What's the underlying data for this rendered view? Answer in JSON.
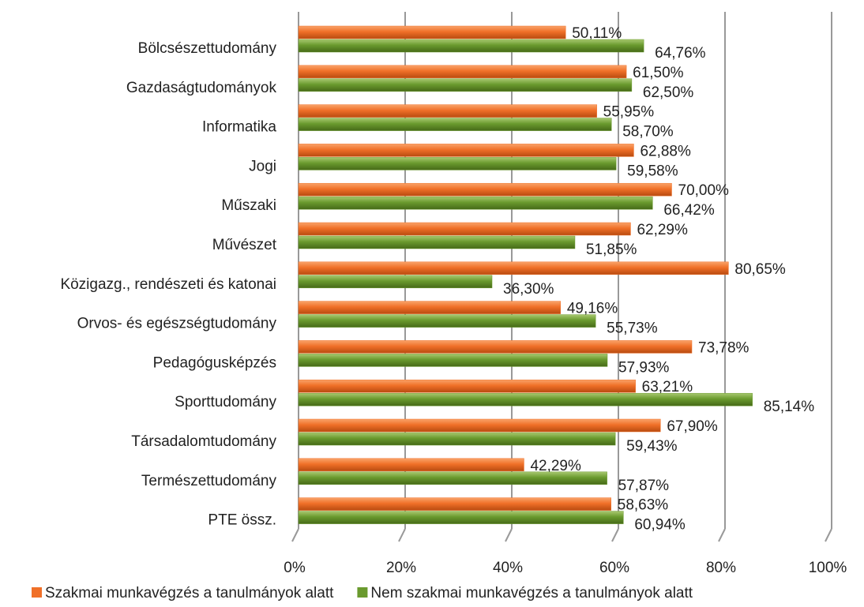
{
  "chart_data": {
    "type": "bar",
    "orientation": "horizontal",
    "categories": [
      "Bölcsészettudomány",
      "Gazdaságtudományok",
      "Informatika",
      "Jogi",
      "Műszaki",
      "Művészet",
      "Közigazg., rendészeti és katonai",
      "Orvos- és egészségtudomány",
      "Pedagógusképzés",
      "Sporttudomány",
      "Társadalomtudomány",
      "Természettudomány",
      "PTE össz."
    ],
    "series": [
      {
        "name": "Szakmai munkavégzés a tanulmányok alatt",
        "color": "#f07028",
        "values": [
          50.11,
          61.5,
          55.95,
          62.88,
          70.0,
          62.29,
          80.65,
          49.16,
          73.78,
          63.21,
          67.9,
          42.29,
          58.63
        ],
        "value_labels": [
          "50,11%",
          "61,50%",
          "55,95%",
          "62,88%",
          "70,00%",
          "62,29%",
          "80,65%",
          "49,16%",
          "73,78%",
          "63,21%",
          "67,90%",
          "42,29%",
          "58,63%"
        ]
      },
      {
        "name": "Nem szakmai munkavégzés a tanulmányok alatt",
        "color": "#6a9a2e",
        "values": [
          64.76,
          62.5,
          58.7,
          59.58,
          66.42,
          51.85,
          36.3,
          55.73,
          57.93,
          85.14,
          59.43,
          57.87,
          60.94
        ],
        "value_labels": [
          "64,76%",
          "62,50%",
          "58,70%",
          "59,58%",
          "66,42%",
          "51,85%",
          "36,30%",
          "55,73%",
          "57,93%",
          "85,14%",
          "59,43%",
          "57,87%",
          "60,94%"
        ]
      }
    ],
    "xlim": [
      0,
      100
    ],
    "xticks": [
      {
        "value": 0,
        "label": "0%"
      },
      {
        "value": 20,
        "label": "20%"
      },
      {
        "value": 40,
        "label": "40%"
      },
      {
        "value": 60,
        "label": "60%"
      },
      {
        "value": 80,
        "label": "80%"
      },
      {
        "value": 100,
        "label": "100%"
      }
    ],
    "grid": true,
    "legend": "bottom"
  }
}
